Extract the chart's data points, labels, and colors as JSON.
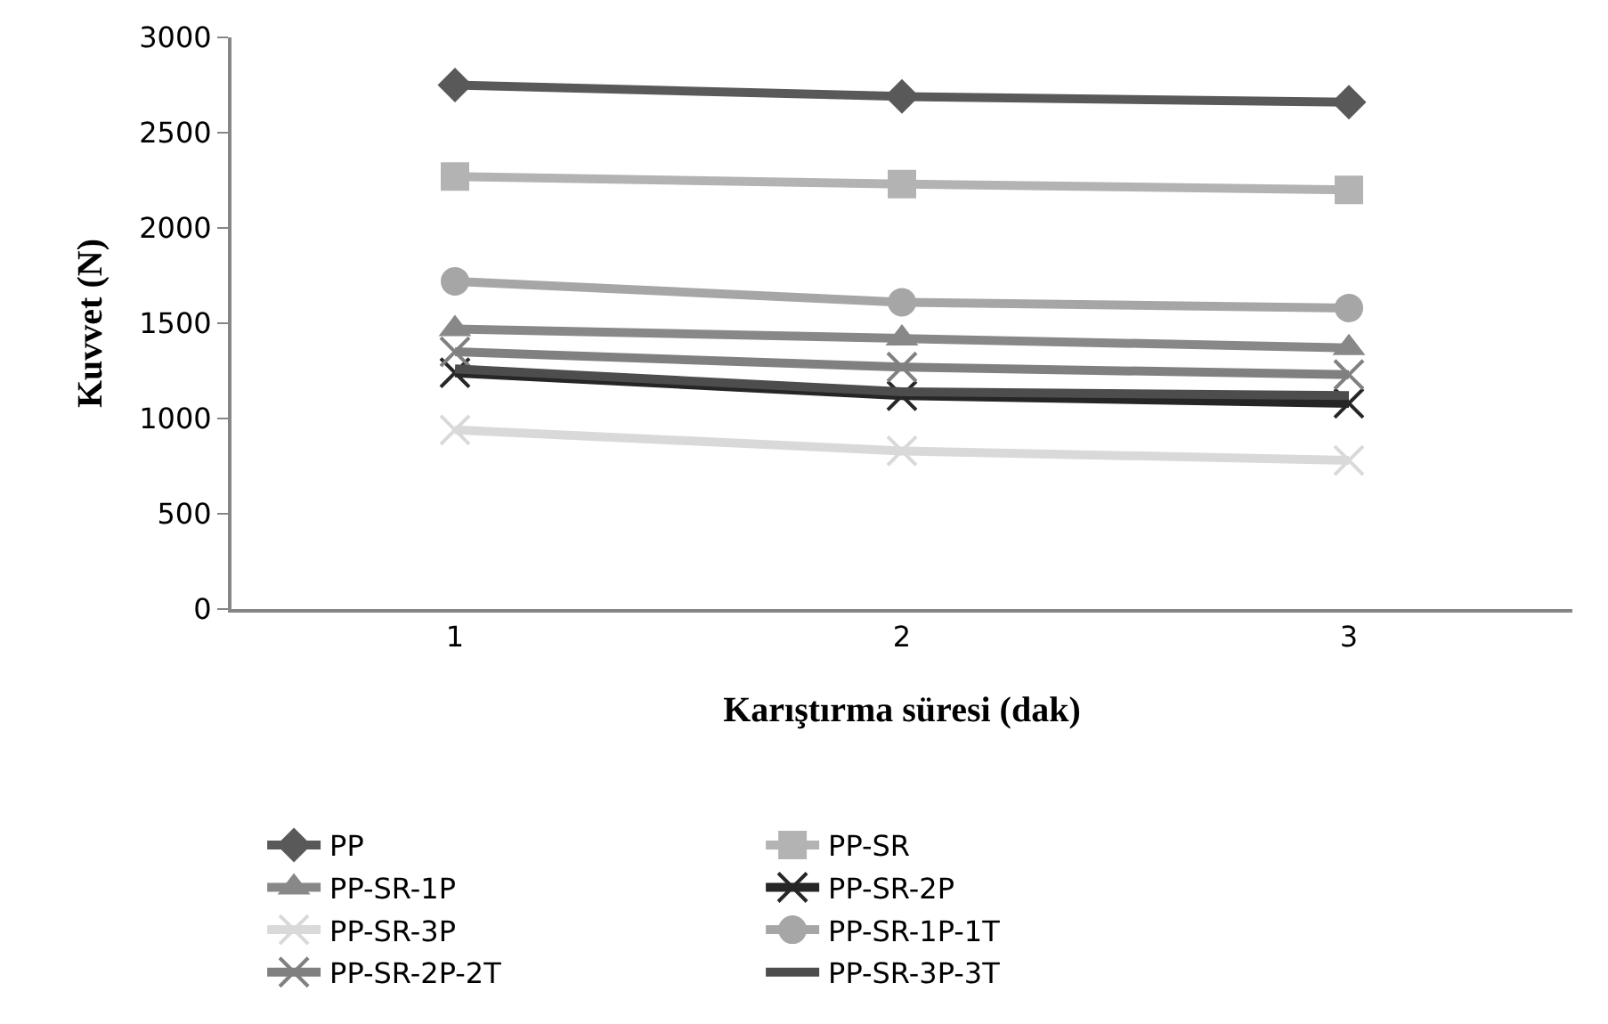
{
  "chart_data": {
    "type": "line",
    "xlabel": "Karıştırma süresi (dak)",
    "ylabel": "Kuvvet (N)",
    "categories": [
      "1",
      "2",
      "3"
    ],
    "ylim": [
      0,
      3000
    ],
    "yticks": [
      0,
      500,
      1000,
      1500,
      2000,
      2500,
      3000
    ],
    "legend": "bottom",
    "series": [
      {
        "name": "PP",
        "color": "#595959",
        "marker": "diamond",
        "values": [
          2750,
          2690,
          2660
        ]
      },
      {
        "name": "PP-SR",
        "color": "#b3b3b3",
        "marker": "square",
        "values": [
          2270,
          2230,
          2200
        ]
      },
      {
        "name": "PP-SR-1P",
        "color": "#888888",
        "marker": "triangle",
        "values": [
          1470,
          1420,
          1370
        ]
      },
      {
        "name": "PP-SR-2P",
        "color": "#262626",
        "marker": "cross",
        "values": [
          1240,
          1120,
          1080
        ]
      },
      {
        "name": "PP-SR-3P",
        "color": "#d9d9d9",
        "marker": "cross",
        "values": [
          940,
          830,
          780
        ]
      },
      {
        "name": "PP-SR-1P-1T",
        "color": "#a6a6a6",
        "marker": "circle",
        "values": [
          1720,
          1610,
          1580
        ]
      },
      {
        "name": "PP-SR-2P-2T",
        "color": "#808080",
        "marker": "cross",
        "values": [
          1350,
          1270,
          1230
        ]
      },
      {
        "name": "PP-SR-3P-3T",
        "color": "#4d4d4d",
        "marker": "none",
        "values": [
          1260,
          1140,
          1120
        ]
      }
    ]
  }
}
